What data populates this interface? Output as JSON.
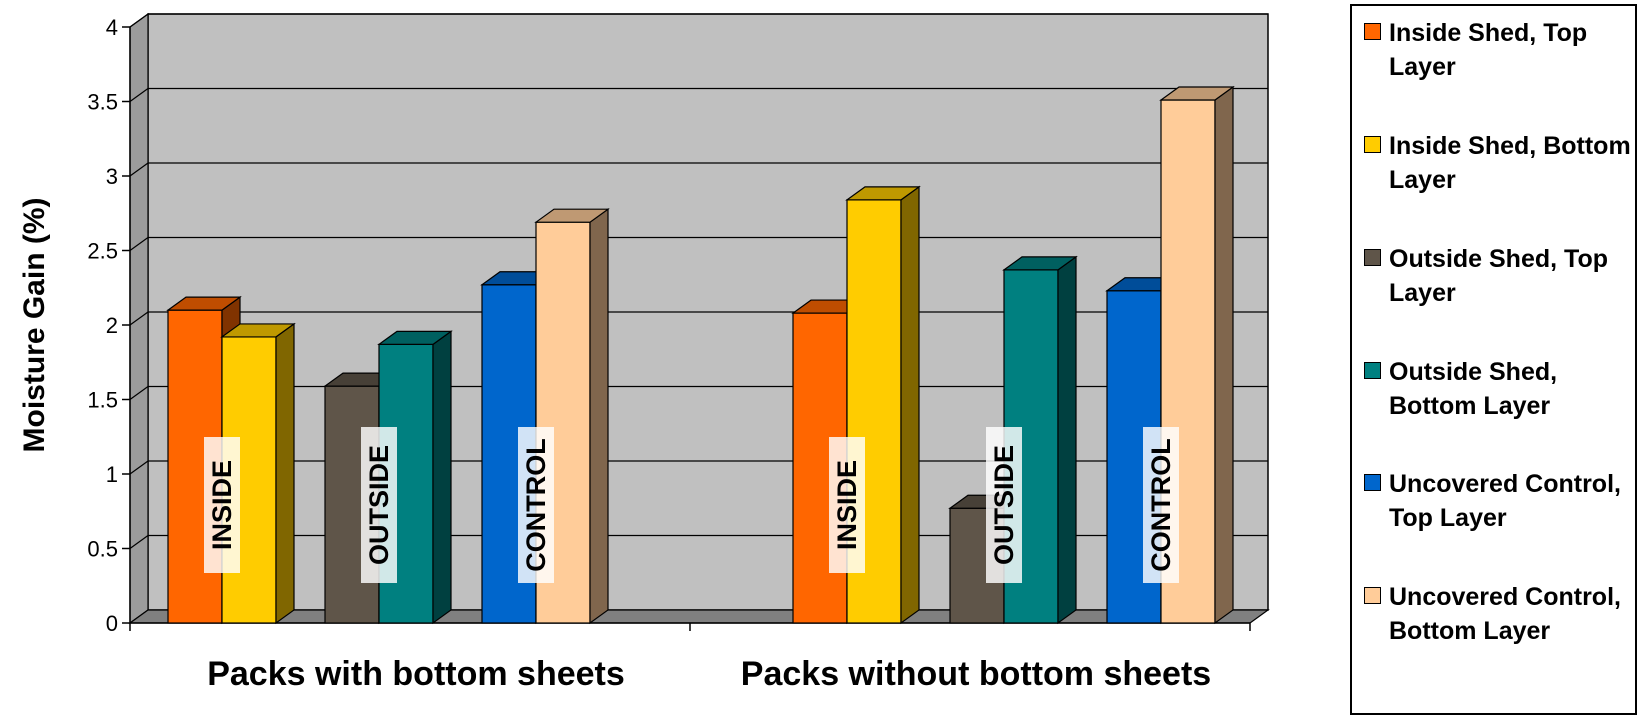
{
  "chart_data": {
    "type": "bar",
    "ylabel": "Moisture Gain (%)",
    "ylim": [
      0,
      4
    ],
    "yticks": [
      "0",
      "0.5",
      "1",
      "1.5",
      "2",
      "2.5",
      "3",
      "3.5",
      "4"
    ],
    "grid": true,
    "legend_position": "right",
    "groups": [
      {
        "label": "Packs with bottom sheets",
        "pairs": [
          {
            "annotation": "INSIDE",
            "series": [
              0,
              1
            ]
          },
          {
            "annotation": "OUTSIDE",
            "series": [
              2,
              3
            ]
          },
          {
            "annotation": "CONTROL",
            "series": [
              4,
              5
            ]
          }
        ]
      },
      {
        "label": "Packs without bottom sheets",
        "pairs": [
          {
            "annotation": "INSIDE",
            "series": [
              0,
              1
            ]
          },
          {
            "annotation": "OUTSIDE",
            "series": [
              2,
              3
            ]
          },
          {
            "annotation": "CONTROL",
            "series": [
              4,
              5
            ]
          }
        ]
      }
    ],
    "series": [
      {
        "name": "Inside Shed, Top Layer",
        "color": "#FF6600",
        "values": [
          2.1,
          2.08
        ]
      },
      {
        "name": "Inside Shed, Bottom Layer",
        "color": "#FFCC00",
        "values": [
          1.92,
          2.84
        ]
      },
      {
        "name": "Outside Shed, Top Layer",
        "color": "#5F5549",
        "values": [
          1.59,
          0.77
        ]
      },
      {
        "name": "Outside Shed, Bottom Layer",
        "color": "#008080",
        "values": [
          1.87,
          2.37
        ]
      },
      {
        "name": "Uncovered Control, Top Layer",
        "color": "#0066CC",
        "values": [
          2.27,
          2.23
        ]
      },
      {
        "name": "Uncovered Control, Bottom Layer",
        "color": "#FFCC99",
        "values": [
          2.69,
          3.51
        ]
      }
    ]
  },
  "legend": {
    "items": [
      {
        "label": "Inside Shed, Top Layer",
        "color": "#FF6600"
      },
      {
        "label": "Inside Shed, Bottom Layer",
        "color": "#FFCC00"
      },
      {
        "label": "Outside Shed, Top Layer",
        "color": "#5F5549"
      },
      {
        "label": "Outside Shed, Bottom Layer",
        "color": "#008080"
      },
      {
        "label": "Uncovered Control, Top Layer",
        "color": "#0066CC"
      },
      {
        "label": "Uncovered Control, Bottom Layer",
        "color": "#FFCC99"
      }
    ]
  }
}
